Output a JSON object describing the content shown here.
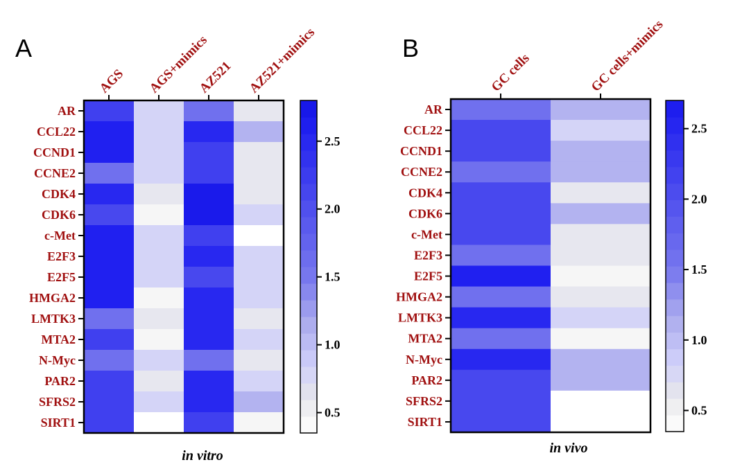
{
  "chart_data": [
    {
      "type": "heatmap",
      "panel": "A",
      "title": "",
      "xlabel": "in vitro",
      "ylabel": "",
      "columns": [
        "AGS",
        "AGS+mimics",
        "AZ521",
        "AZ521+mimics"
      ],
      "rows": [
        "AR",
        "CCL22",
        "CCND1",
        "CCNE2",
        "CDK4",
        "CDK6",
        "c-Met",
        "E2F3",
        "E2F5",
        "HMGA2",
        "LMTK3",
        "MTA2",
        "N-Myc",
        "PAR2",
        "SFRS2",
        "SIRT1"
      ],
      "values": [
        [
          2.2,
          0.8,
          1.6,
          0.6
        ],
        [
          2.6,
          0.8,
          2.5,
          1.1
        ],
        [
          2.6,
          0.8,
          2.2,
          0.6
        ],
        [
          1.6,
          0.8,
          2.2,
          0.6
        ],
        [
          2.5,
          0.6,
          2.7,
          0.6
        ],
        [
          2.1,
          0.45,
          2.7,
          0.8
        ],
        [
          2.6,
          0.8,
          2.2,
          0.35
        ],
        [
          2.6,
          0.8,
          2.5,
          0.8
        ],
        [
          2.6,
          0.8,
          2.1,
          0.8
        ],
        [
          2.6,
          0.45,
          2.5,
          0.8
        ],
        [
          1.6,
          0.6,
          2.5,
          0.6
        ],
        [
          2.2,
          0.45,
          2.5,
          0.8
        ],
        [
          1.6,
          0.8,
          1.6,
          0.6
        ],
        [
          2.2,
          0.6,
          2.5,
          0.8
        ],
        [
          2.2,
          0.8,
          2.5,
          1.1
        ],
        [
          2.2,
          0.35,
          2.2,
          0.45
        ]
      ],
      "colorbar": {
        "min": 0.35,
        "max": 2.8,
        "ticks": [
          "0.5",
          "1.0",
          "1.5",
          "2.0",
          "2.5"
        ],
        "tick_values": [
          0.5,
          1.0,
          1.5,
          2.0,
          2.5
        ]
      }
    },
    {
      "type": "heatmap",
      "panel": "B",
      "title": "",
      "xlabel": "in vivo",
      "ylabel": "",
      "columns": [
        "GC cells",
        "GC cells+mimics"
      ],
      "rows": [
        "AR",
        "CCL22",
        "CCND1",
        "CCNE2",
        "CDK4",
        "CDK6",
        "c-Met",
        "E2F3",
        "E2F5",
        "HMGA2",
        "LMTK3",
        "MTA2",
        "N-Myc",
        "PAR2",
        "SFRS2",
        "SIRT1"
      ],
      "values": [
        [
          1.6,
          1.1
        ],
        [
          2.1,
          0.8
        ],
        [
          2.1,
          1.1
        ],
        [
          1.6,
          1.1
        ],
        [
          2.1,
          0.6
        ],
        [
          2.1,
          1.1
        ],
        [
          2.1,
          0.6
        ],
        [
          1.6,
          0.6
        ],
        [
          2.6,
          0.45
        ],
        [
          1.6,
          0.6
        ],
        [
          2.5,
          0.8
        ],
        [
          1.6,
          0.45
        ],
        [
          2.5,
          1.1
        ],
        [
          2.1,
          1.1
        ],
        [
          2.1,
          0.35
        ],
        [
          2.1,
          0.35
        ]
      ],
      "colorbar": {
        "min": 0.35,
        "max": 2.7,
        "ticks": [
          "0.5",
          "1.0",
          "1.5",
          "2.0",
          "2.5"
        ],
        "tick_values": [
          0.5,
          1.0,
          1.5,
          2.0,
          2.5
        ]
      }
    }
  ],
  "colorscale": {
    "stops": [
      [
        0.35,
        "#ffffff"
      ],
      [
        0.5,
        "#f2f2f2"
      ],
      [
        0.65,
        "#e2e2ee"
      ],
      [
        0.85,
        "#cfcffa"
      ],
      [
        1.15,
        "#adadee"
      ],
      [
        1.5,
        "#7878ee"
      ],
      [
        2.0,
        "#5050ee"
      ],
      [
        2.6,
        "#2020f0"
      ],
      [
        2.8,
        "#1414e6"
      ]
    ]
  }
}
